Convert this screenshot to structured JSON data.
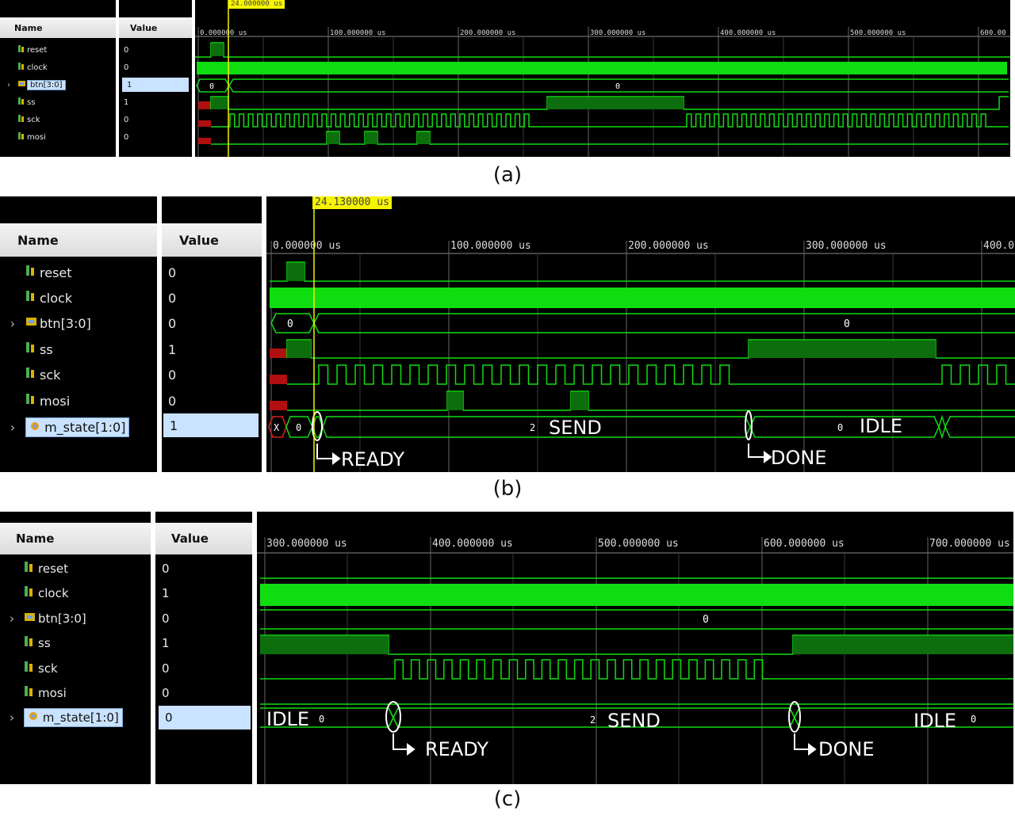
{
  "columns": {
    "name": "Name",
    "value": "Value"
  },
  "icons": {
    "bit_signal": "signal-bit-icon",
    "bus_signal": "signal-bus-icon",
    "state_signal": "signal-state-icon",
    "expand": "chevron-right-icon"
  },
  "colors": {
    "wave_green": "#10dd10",
    "dark_green": "#0d6e0d",
    "cursor": "#f6f400",
    "undefined_red": "#b01010",
    "background": "#000000"
  },
  "panels": [
    {
      "id": "a",
      "caption": "(a)",
      "cursor_label": "24.000000 us",
      "time_ticks": [
        "0.000000 us",
        "100.000000 us",
        "200.000000 us",
        "300.000000 us",
        "400.000000 us",
        "500.000000 us",
        "600.00"
      ],
      "signals": [
        {
          "name": "reset",
          "value": "0",
          "expandable": false,
          "selected": false
        },
        {
          "name": "clock",
          "value": "0",
          "expandable": false,
          "selected": false
        },
        {
          "name": "btn[3:0]",
          "value": "1",
          "expandable": true,
          "selected": true
        },
        {
          "name": "ss",
          "value": "1",
          "expandable": false,
          "selected": false
        },
        {
          "name": "sck",
          "value": "0",
          "expandable": false,
          "selected": false
        },
        {
          "name": "mosi",
          "value": "0",
          "expandable": false,
          "selected": false
        }
      ],
      "bus_labels": [
        {
          "signal": "btn[3:0]",
          "text": "0"
        },
        {
          "signal": "btn[3:0]",
          "text": "0"
        }
      ],
      "annotations": []
    },
    {
      "id": "b",
      "caption": "(b)",
      "cursor_label": "24.130000 us",
      "time_ticks": [
        "0.000000 us",
        "100.000000 us",
        "200.000000 us",
        "300.000000 us",
        "400.0"
      ],
      "signals": [
        {
          "name": "reset",
          "value": "0",
          "expandable": false,
          "selected": false
        },
        {
          "name": "clock",
          "value": "0",
          "expandable": false,
          "selected": false
        },
        {
          "name": "btn[3:0]",
          "value": "0",
          "expandable": true,
          "selected": false
        },
        {
          "name": "ss",
          "value": "1",
          "expandable": false,
          "selected": false
        },
        {
          "name": "sck",
          "value": "0",
          "expandable": false,
          "selected": false
        },
        {
          "name": "mosi",
          "value": "0",
          "expandable": false,
          "selected": false
        },
        {
          "name": "m_state[1:0]",
          "value": "1",
          "expandable": true,
          "selected": true
        }
      ],
      "bus_labels": [
        {
          "signal": "btn[3:0]",
          "text": "0"
        },
        {
          "signal": "btn[3:0]",
          "text": "0"
        },
        {
          "signal": "m_state[1:0]",
          "text": "X"
        },
        {
          "signal": "m_state[1:0]",
          "text": "0"
        },
        {
          "signal": "m_state[1:0]",
          "text": "2"
        },
        {
          "signal": "m_state[1:0]",
          "text": "0"
        }
      ],
      "annotations": [
        "SEND",
        "IDLE",
        "READY",
        "DONE"
      ]
    },
    {
      "id": "c",
      "caption": "(c)",
      "cursor_label": "",
      "time_ticks": [
        "300.000000 us",
        "400.000000 us",
        "500.000000 us",
        "600.000000 us",
        "700.000000 us"
      ],
      "signals": [
        {
          "name": "reset",
          "value": "0",
          "expandable": false,
          "selected": false
        },
        {
          "name": "clock",
          "value": "1",
          "expandable": false,
          "selected": false
        },
        {
          "name": "btn[3:0]",
          "value": "0",
          "expandable": true,
          "selected": false
        },
        {
          "name": "ss",
          "value": "1",
          "expandable": false,
          "selected": false
        },
        {
          "name": "sck",
          "value": "0",
          "expandable": false,
          "selected": false
        },
        {
          "name": "mosi",
          "value": "0",
          "expandable": false,
          "selected": false
        },
        {
          "name": "m_state[1:0]",
          "value": "0",
          "expandable": true,
          "selected": true
        }
      ],
      "bus_labels": [
        {
          "signal": "btn[3:0]",
          "text": "0"
        },
        {
          "signal": "m_state[1:0]",
          "text": "0"
        },
        {
          "signal": "m_state[1:0]",
          "text": "2"
        },
        {
          "signal": "m_state[1:0]",
          "text": "0"
        }
      ],
      "annotations": [
        "IDLE",
        "SEND",
        "IDLE",
        "READY",
        "DONE"
      ]
    }
  ]
}
